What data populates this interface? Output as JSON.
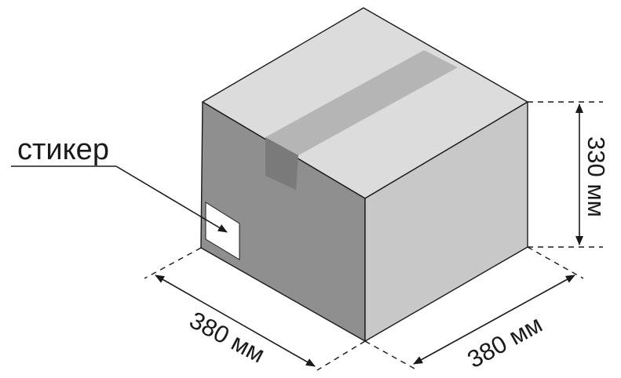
{
  "sticker_label": "стикер",
  "dimensions": {
    "height": "330 мм",
    "width_left": "380 мм",
    "depth_right": "380 мм"
  },
  "colors": {
    "top_face": "#dcdcdc",
    "tape": "#b5b5b5",
    "front_face": "#8f8f8f",
    "tape_flap": "#7a7a7a",
    "right_face": "#c8c8c8",
    "sticker": "#ffffff",
    "line": "#1a1a1a"
  }
}
